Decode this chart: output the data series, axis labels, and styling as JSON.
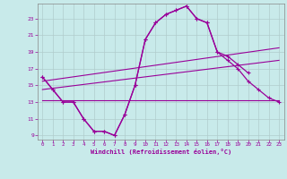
{
  "xlabel": "Windchill (Refroidissement éolien,°C)",
  "bg_color": "#c8eaea",
  "grid_color": "#b0cccc",
  "line_color": "#990099",
  "ylim": [
    8.5,
    24.8
  ],
  "xlim": [
    -0.5,
    23.5
  ],
  "yticks": [
    9,
    11,
    13,
    15,
    17,
    19,
    21,
    23
  ],
  "xticks": [
    0,
    1,
    2,
    3,
    4,
    5,
    6,
    7,
    8,
    9,
    10,
    11,
    12,
    13,
    14,
    15,
    16,
    17,
    18,
    19,
    20,
    21,
    22,
    23
  ],
  "diag_line1": [
    15.5,
    19.5
  ],
  "diag_line2": [
    14.5,
    18.0
  ],
  "horiz_line": [
    13.2,
    13.2
  ],
  "main_curve_x": [
    0,
    1,
    2,
    3,
    4,
    5,
    6,
    7,
    8,
    9,
    10,
    11,
    12,
    13,
    14,
    15,
    16,
    17,
    18,
    19,
    20
  ],
  "main_curve_y": [
    16.0,
    14.5,
    13.0,
    13.0,
    11.0,
    9.5,
    9.5,
    9.0,
    11.5,
    15.0,
    20.5,
    22.5,
    23.5,
    24.0,
    24.5,
    23.0,
    22.5,
    19.0,
    18.5,
    17.5,
    16.5
  ],
  "curve2_x": [
    0,
    1,
    2,
    3,
    4,
    5,
    6,
    7,
    8,
    9,
    10,
    11,
    12,
    13,
    14,
    15,
    16,
    17,
    18,
    19,
    20,
    21,
    22,
    23
  ],
  "curve2_y": [
    16.0,
    14.5,
    13.0,
    13.0,
    11.0,
    9.5,
    9.5,
    9.0,
    11.5,
    15.0,
    20.5,
    22.5,
    23.5,
    24.0,
    24.5,
    23.0,
    22.5,
    19.0,
    18.0,
    17.0,
    15.5,
    14.5,
    13.5,
    13.0
  ]
}
